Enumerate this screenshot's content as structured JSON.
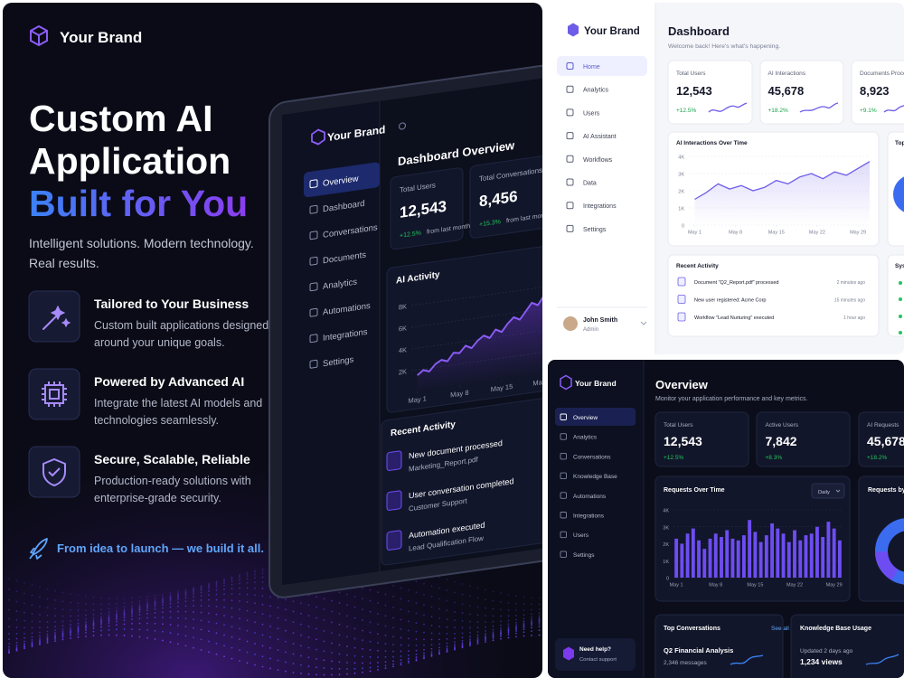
{
  "hero": {
    "brand": "Your Brand",
    "title_lines": [
      "Custom AI",
      "Application"
    ],
    "title_highlight": "Built for You",
    "subtitle_lines": [
      "Intelligent solutions. Modern technology.",
      "Real results."
    ],
    "features": [
      {
        "title": "Tailored to Your Business",
        "description_lines": [
          "Custom built applications designed",
          "around your unique goals."
        ]
      },
      {
        "title": "Powered by Advanced AI",
        "description_lines": [
          "Integrate the latest AI models and",
          "technologies seamlessly."
        ]
      },
      {
        "title": "Secure, Scalable, Reliable",
        "description_lines": [
          "Production-ready solutions with",
          "enterprise-grade security."
        ]
      }
    ],
    "tagline": "From idea to launch — we build it all."
  },
  "tablet": {
    "brand": "Your Brand",
    "nav": [
      "Overview",
      "Dashboard",
      "Conversations",
      "Documents",
      "Analytics",
      "Automations",
      "Integrations",
      "Settings"
    ],
    "heading": "Dashboard Overview",
    "stats": [
      {
        "label": "Total Users",
        "value": "12,543",
        "change": "+12.5%",
        "note": "from last month"
      },
      {
        "label": "Total Conversations",
        "value": "8,456",
        "change": "+15.3%",
        "note": "from last month"
      }
    ],
    "activity_chart": {
      "type": "line",
      "title": "AI Activity",
      "xlim": [
        0,
        24
      ],
      "ylim": [
        0,
        9000
      ],
      "yticks": [
        {
          "value": 2000,
          "label": "2K"
        },
        {
          "value": 4000,
          "label": "4K"
        },
        {
          "value": 6000,
          "label": "6K"
        },
        {
          "value": 8000,
          "label": "8K"
        }
      ],
      "xticks": [
        {
          "value": 1,
          "label": "May 1"
        },
        {
          "value": 8,
          "label": "May 8"
        },
        {
          "value": 15,
          "label": "May 15"
        },
        {
          "value": 22,
          "label": "May 22"
        }
      ],
      "x": [
        1,
        2,
        3,
        4,
        5,
        6,
        7,
        8,
        9,
        10,
        11,
        12,
        13,
        14,
        15,
        16,
        17,
        18,
        19,
        20,
        21,
        22,
        23,
        24
      ],
      "values": [
        1500,
        1900,
        1700,
        2300,
        2600,
        2400,
        3100,
        3000,
        3600,
        3300,
        3900,
        4300,
        4000,
        4700,
        4400,
        5100,
        5600,
        5300,
        6000,
        6700,
        6400,
        7200,
        6900,
        7800
      ],
      "color": "#8b5cf6"
    },
    "recent_activity": {
      "title": "Recent Activity",
      "items": [
        {
          "title": "New document processed",
          "subtitle": "Marketing_Report.pdf"
        },
        {
          "title": "User conversation completed",
          "subtitle": "Customer Support"
        },
        {
          "title": "Automation executed",
          "subtitle": "Lead Qualification Flow"
        }
      ]
    }
  },
  "light_dashboard": {
    "brand": "Your Brand",
    "nav": [
      "Home",
      "Analytics",
      "Users",
      "AI Assistant",
      "Workflows",
      "Data",
      "Integrations",
      "Settings"
    ],
    "user": {
      "name": "John Smith",
      "role": "Admin"
    },
    "title": "Dashboard",
    "subtitle": "Welcome back! Here's what's happening.",
    "stats": [
      {
        "label": "Total Users",
        "value": "12,543",
        "change": "+12.5%"
      },
      {
        "label": "AI Interactions",
        "value": "45,678",
        "change": "+18.2%"
      },
      {
        "label": "Documents Proces",
        "value": "8,923",
        "change": "+9.1%"
      }
    ],
    "chart": {
      "type": "line",
      "title": "AI Interactions Over Time",
      "xlim": [
        0,
        31
      ],
      "ylim": [
        0,
        4000
      ],
      "yticks": [
        0,
        {
          "value": 1000,
          "label": "1K"
        },
        {
          "value": 2000,
          "label": "2K"
        },
        {
          "value": 3000,
          "label": "3K"
        },
        {
          "value": 4000,
          "label": "4K"
        }
      ],
      "xticks": [
        {
          "value": 1,
          "label": "May 1"
        },
        {
          "value": 8,
          "label": "May 8"
        },
        {
          "value": 15,
          "label": "May 15"
        },
        {
          "value": 22,
          "label": "May 22"
        },
        {
          "value": 29,
          "label": "May 29"
        }
      ],
      "x": [
        1,
        3,
        5,
        7,
        9,
        11,
        13,
        15,
        17,
        19,
        21,
        23,
        25,
        27,
        29,
        31
      ],
      "values": [
        1500,
        1900,
        2400,
        2100,
        2300,
        2000,
        2200,
        2600,
        2400,
        2800,
        3000,
        2700,
        3100,
        2900,
        3300,
        3700
      ],
      "color": "#6d5ce8"
    },
    "side_card_title": "Top",
    "recent_activity": {
      "title": "Recent Activity",
      "items": [
        {
          "text": "Document \"Q2_Report.pdf\" processed",
          "time": "2 minutes ago"
        },
        {
          "text": "New user registered: Acme Corp",
          "time": "15 minutes ago"
        },
        {
          "text": "Workflow \"Lead Nurturing\" executed",
          "time": "1 hour ago"
        }
      ]
    },
    "status_card_title": "Sys"
  },
  "dark_dashboard": {
    "brand": "Your Brand",
    "nav": [
      "Overview",
      "Analytics",
      "Conversations",
      "Knowledge Base",
      "Automations",
      "Integrations",
      "Users",
      "Settings"
    ],
    "help": {
      "title": "Need help?",
      "link": "Contact support"
    },
    "title": "Overview",
    "subtitle": "Monitor your application performance and key metrics.",
    "stats": [
      {
        "label": "Total Users",
        "value": "12,543",
        "change": "+12.5%"
      },
      {
        "label": "Active Users",
        "value": "7,842",
        "change": "+8.3%"
      },
      {
        "label": "AI Requests",
        "value": "45,678",
        "change": "+18.2%"
      }
    ],
    "chart": {
      "type": "bar",
      "title": "Requests Over Time",
      "period": "Daily",
      "xlim": [
        0.5,
        30.5
      ],
      "ylim": [
        0,
        4000
      ],
      "yticks": [
        0,
        {
          "value": 1000,
          "label": "1K"
        },
        {
          "value": 2000,
          "label": "2K"
        },
        {
          "value": 3000,
          "label": "3K"
        },
        {
          "value": 4000,
          "label": "4K"
        }
      ],
      "xticks": [
        {
          "value": 1,
          "label": "May 1"
        },
        {
          "value": 8,
          "label": "May 8"
        },
        {
          "value": 15,
          "label": "May 15"
        },
        {
          "value": 22,
          "label": "May 22"
        },
        {
          "value": 29,
          "label": "May 29"
        }
      ],
      "x": [
        1,
        2,
        3,
        4,
        5,
        6,
        7,
        8,
        9,
        10,
        11,
        12,
        13,
        14,
        15,
        16,
        17,
        18,
        19,
        20,
        21,
        22,
        23,
        24,
        25,
        26,
        27,
        28,
        29,
        30
      ],
      "values": [
        2300,
        2000,
        2600,
        2900,
        2200,
        1700,
        2300,
        2600,
        2400,
        2800,
        2300,
        2200,
        2500,
        3400,
        2700,
        2100,
        2500,
        3200,
        2900,
        2600,
        2100,
        2800,
        2200,
        2500,
        2600,
        3000,
        2400,
        3300,
        2900,
        2200
      ],
      "color": "#6d4df2"
    },
    "side_card_title": "Requests by",
    "bottom_cards": [
      {
        "title": "Top Conversations",
        "link": "See all",
        "item": "Q2 Financial Analysis",
        "detail": "2,346 messages"
      },
      {
        "title": "Knowledge Base Usage",
        "link": "See a",
        "item": "Updated 2 days ago",
        "detail": "1,234 views"
      }
    ]
  }
}
